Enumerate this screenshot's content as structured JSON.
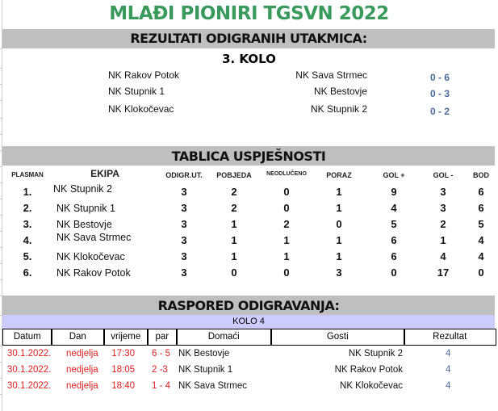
{
  "title": "MLAĐI PIONIRI  TGSVN 2022",
  "results": {
    "heading": "REZULTATI ODIGRANIH UTAKMICA:",
    "round": "3. KOLO",
    "matches": [
      {
        "home": "NK Rakov Potok",
        "away": "NK Sava Strmec",
        "score": "0 - 6"
      },
      {
        "home": "NK Stupnik 1",
        "away": "NK Bestovje",
        "score": "0 - 3"
      },
      {
        "home": "NK Klokočevac",
        "away": "NK Stupnik 2",
        "score": "0 - 2"
      }
    ]
  },
  "standings": {
    "heading": "TABLICA USPJEŠNOSTI",
    "columns": [
      "PLASMAN",
      "EKIPA",
      "ODIGR.UT.",
      "POBJEDA",
      "NEODLUČENO",
      "PORAZ",
      "GOL +",
      "GOL -",
      "BOD"
    ],
    "rows": [
      [
        "1.",
        "NK Stupnik 2",
        "3",
        "2",
        "0",
        "1",
        "9",
        "3",
        "6"
      ],
      [
        "2.",
        "NK Stupnik 1",
        "3",
        "2",
        "0",
        "1",
        "4",
        "3",
        "6"
      ],
      [
        "3.",
        "NK Bestovje",
        "3",
        "1",
        "2",
        "0",
        "5",
        "2",
        "5"
      ],
      [
        "4.",
        "NK Sava Strmec",
        "3",
        "1",
        "1",
        "1",
        "6",
        "1",
        "4"
      ],
      [
        "5.",
        "NK Klokočevac",
        "3",
        "1",
        "1",
        "1",
        "6",
        "4",
        "4"
      ],
      [
        "6.",
        "NK Rakov Potok",
        "3",
        "0",
        "0",
        "3",
        "0",
        "17",
        "0"
      ]
    ]
  },
  "schedule": {
    "heading": "RASPORED ODIGRAVANJA:",
    "round": "KOLO 4",
    "columns": [
      "Datum",
      "Dan",
      "vrijeme",
      "par",
      "Domaći",
      "Gosti",
      "Rezultat"
    ],
    "rows": [
      [
        "30.1.2022.",
        "nedjelja",
        "17:30",
        "6 - 5",
        "NK Bestovje",
        "NK Stupnik 2",
        "4"
      ],
      [
        "30.1.2022.",
        "nedjelja",
        "18:05",
        "2 -3",
        "NK Stupnik 1",
        "NK Rakov Potok",
        "4"
      ],
      [
        "30.1.2022.",
        "nedjelja",
        "18:40",
        "1 - 4",
        "NK Sava Strmec",
        "NK Klokočevac",
        "4"
      ]
    ]
  },
  "colors": {
    "title": "#3a9a5b",
    "section_bar": "#bfbfbf",
    "round_bar": "#ccccff",
    "date_text": "#e02020",
    "score_text": "#4a6a9a"
  }
}
